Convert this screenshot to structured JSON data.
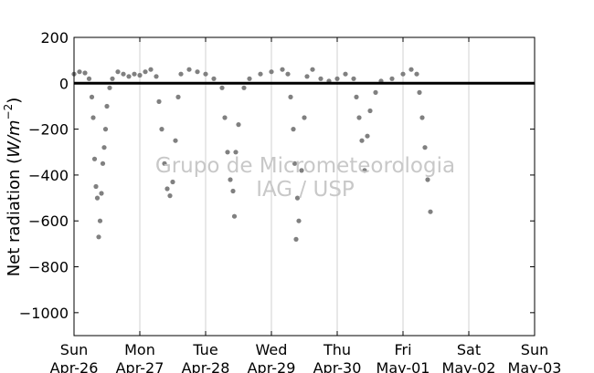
{
  "chart_data": {
    "type": "scatter",
    "title": "",
    "xlabel": "",
    "ylabel": "Net radiation (W/m⁻²)",
    "ylabel_parts": {
      "prefix": "Net radiation (",
      "unit": "W/m",
      "exp": "−2",
      "suffix": ")"
    },
    "xlim": [
      "2015-04-26 00:00",
      "2015-05-03 00:00"
    ],
    "ylim": [
      -1100,
      200
    ],
    "yticks": [
      200,
      0,
      -200,
      -400,
      -600,
      -800,
      -1000
    ],
    "ytick_labels": [
      "200",
      "0",
      "−200",
      "−400",
      "−600",
      "−800",
      "−1000"
    ],
    "xticks": [
      {
        "day": "Sun",
        "date": "Apr-26"
      },
      {
        "day": "Mon",
        "date": "Apr-27"
      },
      {
        "day": "Tue",
        "date": "Apr-28"
      },
      {
        "day": "Wed",
        "date": "Apr-29"
      },
      {
        "day": "Thu",
        "date": "Apr-30"
      },
      {
        "day": "Fri",
        "date": "May-01"
      },
      {
        "day": "Sat",
        "date": "May-02"
      },
      {
        "day": "Sun",
        "date": "May-03"
      }
    ],
    "grid": "vertical",
    "zero_line": true,
    "marker_color": "#808080",
    "series": [
      {
        "points": [
          [
            "Apr-26 00:00",
            40
          ],
          [
            "Apr-26 02:00",
            50
          ],
          [
            "Apr-26 04:00",
            45
          ],
          [
            "Apr-26 05:30",
            20
          ],
          [
            "Apr-26 06:30",
            -60
          ],
          [
            "Apr-26 07:00",
            -150
          ],
          [
            "Apr-26 07:30",
            -330
          ],
          [
            "Apr-26 08:00",
            -450
          ],
          [
            "Apr-26 08:30",
            -500
          ],
          [
            "Apr-26 09:00",
            -670
          ],
          [
            "Apr-26 09:30",
            -600
          ],
          [
            "Apr-26 10:00",
            -480
          ],
          [
            "Apr-26 10:30",
            -350
          ],
          [
            "Apr-26 11:00",
            -280
          ],
          [
            "Apr-26 11:30",
            -200
          ],
          [
            "Apr-26 12:00",
            -100
          ],
          [
            "Apr-26 13:00",
            -20
          ],
          [
            "Apr-26 14:00",
            20
          ],
          [
            "Apr-26 16:00",
            50
          ],
          [
            "Apr-26 18:00",
            40
          ],
          [
            "Apr-26 20:00",
            30
          ],
          [
            "Apr-26 22:00",
            40
          ],
          [
            "Apr-27 00:00",
            35
          ],
          [
            "Apr-27 02:00",
            50
          ],
          [
            "Apr-27 04:00",
            60
          ],
          [
            "Apr-27 06:00",
            30
          ],
          [
            "Apr-27 07:00",
            -80
          ],
          [
            "Apr-27 08:00",
            -200
          ],
          [
            "Apr-27 09:00",
            -350
          ],
          [
            "Apr-27 10:00",
            -460
          ],
          [
            "Apr-27 11:00",
            -490
          ],
          [
            "Apr-27 12:00",
            -430
          ],
          [
            "Apr-27 13:00",
            -250
          ],
          [
            "Apr-27 14:00",
            -60
          ],
          [
            "Apr-27 15:00",
            40
          ],
          [
            "Apr-27 18:00",
            60
          ],
          [
            "Apr-27 21:00",
            50
          ],
          [
            "Apr-28 00:00",
            40
          ],
          [
            "Apr-28 03:00",
            20
          ],
          [
            "Apr-28 06:00",
            -20
          ],
          [
            "Apr-28 07:00",
            -150
          ],
          [
            "Apr-28 08:00",
            -300
          ],
          [
            "Apr-28 09:00",
            -420
          ],
          [
            "Apr-28 10:00",
            -470
          ],
          [
            "Apr-28 10:30",
            -580
          ],
          [
            "Apr-28 11:00",
            -300
          ],
          [
            "Apr-28 12:00",
            -180
          ],
          [
            "Apr-28 14:00",
            -20
          ],
          [
            "Apr-28 16:00",
            20
          ],
          [
            "Apr-28 20:00",
            40
          ],
          [
            "Apr-29 00:00",
            50
          ],
          [
            "Apr-29 04:00",
            60
          ],
          [
            "Apr-29 06:00",
            40
          ],
          [
            "Apr-29 07:00",
            -60
          ],
          [
            "Apr-29 08:00",
            -200
          ],
          [
            "Apr-29 08:30",
            -350
          ],
          [
            "Apr-29 09:00",
            -680
          ],
          [
            "Apr-29 09:30",
            -500
          ],
          [
            "Apr-29 10:00",
            -600
          ],
          [
            "Apr-29 11:00",
            -380
          ],
          [
            "Apr-29 12:00",
            -150
          ],
          [
            "Apr-29 13:00",
            30
          ],
          [
            "Apr-29 15:00",
            60
          ],
          [
            "Apr-29 18:00",
            20
          ],
          [
            "Apr-29 21:00",
            10
          ],
          [
            "Apr-30 00:00",
            20
          ],
          [
            "Apr-30 03:00",
            40
          ],
          [
            "Apr-30 06:00",
            20
          ],
          [
            "Apr-30 07:00",
            -60
          ],
          [
            "Apr-30 08:00",
            -150
          ],
          [
            "Apr-30 09:00",
            -250
          ],
          [
            "Apr-30 10:00",
            -380
          ],
          [
            "Apr-30 11:00",
            -230
          ],
          [
            "Apr-30 12:00",
            -120
          ],
          [
            "Apr-30 14:00",
            -40
          ],
          [
            "Apr-30 16:00",
            10
          ],
          [
            "Apr-30 20:00",
            20
          ],
          [
            "May-01 00:00",
            40
          ],
          [
            "May-01 03:00",
            60
          ],
          [
            "May-01 05:00",
            40
          ],
          [
            "May-01 06:00",
            -40
          ],
          [
            "May-01 07:00",
            -150
          ],
          [
            "May-01 08:00",
            -280
          ],
          [
            "May-01 09:00",
            -420
          ],
          [
            "May-01 10:00",
            -560
          ]
        ]
      }
    ],
    "watermark": [
      "Grupo de Micrometeorologia",
      "IAG / USP"
    ]
  }
}
